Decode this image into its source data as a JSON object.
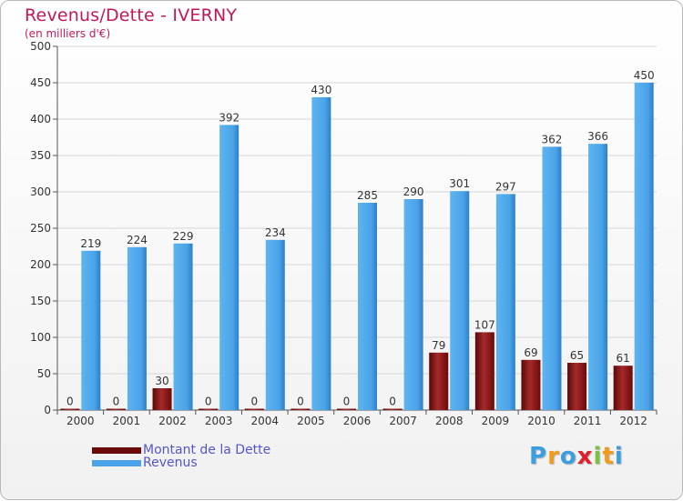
{
  "header": {
    "title": "Revenus/Dette - IVERNY",
    "subtitle": "(en milliers d'€)"
  },
  "chart_data": {
    "type": "bar",
    "title": "Revenus/Dette - IVERNY",
    "subtitle": "(en milliers d'€)",
    "categories": [
      "2000",
      "2001",
      "2002",
      "2003",
      "2004",
      "2005",
      "2006",
      "2007",
      "2008",
      "2009",
      "2010",
      "2011",
      "2012"
    ],
    "series": [
      {
        "name": "Montant de la Dette",
        "color": "#8b1a1a",
        "values": [
          0,
          0,
          30,
          0,
          0,
          0,
          0,
          0,
          79,
          107,
          69,
          65,
          61
        ]
      },
      {
        "name": "Revenus",
        "color": "#4aa3e8",
        "values": [
          219,
          224,
          229,
          392,
          234,
          430,
          285,
          290,
          301,
          297,
          362,
          366,
          450
        ]
      }
    ],
    "ylim": [
      0,
      500
    ],
    "yticks": [
      0,
      50,
      100,
      150,
      200,
      250,
      300,
      350,
      400,
      450,
      500
    ],
    "grid": "horizontal",
    "legend_position": "bottom-left"
  },
  "legend": {
    "items": [
      {
        "label": "Montant de la Dette",
        "color": "#6b0a0a"
      },
      {
        "label": "Revenus",
        "color": "#4aa3e8"
      }
    ]
  },
  "logo": {
    "letters": [
      "P",
      "r",
      "o",
      "x",
      "i",
      "t",
      "i"
    ],
    "colors": [
      "#3a9ee0",
      "#f29a1a",
      "#3a9ee0",
      "#e0202a",
      "#7cc242",
      "#f29a1a",
      "#3a9ee0"
    ]
  }
}
